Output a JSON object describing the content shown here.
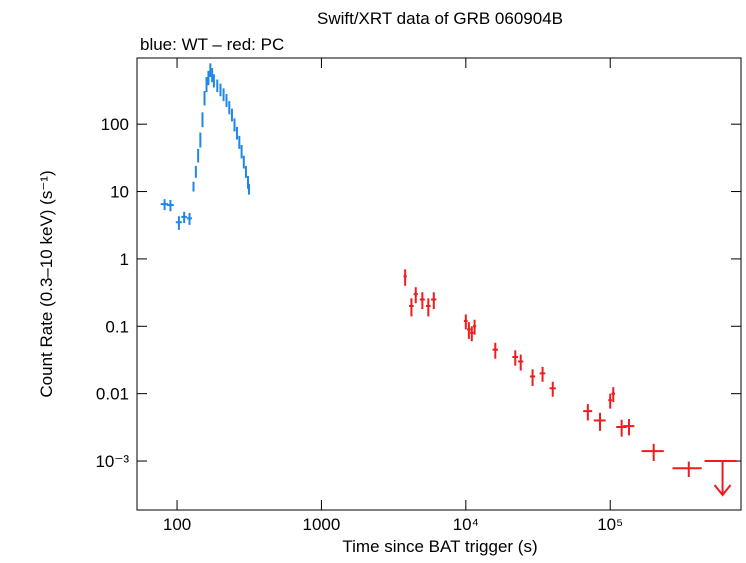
{
  "chart_data": {
    "type": "scatter",
    "title": "Swift/XRT data of GRB 060904B",
    "subtitle": "blue: WT – red: PC",
    "x_label": "Time since BAT trigger (s)",
    "y_label": "Count Rate (0.3–10 keV) (s⁻¹)",
    "x_log": true,
    "y_log": true,
    "xlim": [
      52.8,
      805000
    ],
    "ylim": [
      0.0001875,
      960
    ],
    "xticks": [
      100,
      1000,
      {
        "value": 10000,
        "label": "10⁴"
      },
      {
        "value": 100000,
        "label": "10⁵"
      }
    ],
    "yticks": [
      {
        "value": 0.001,
        "label": "10⁻³"
      },
      0.01,
      0.1,
      1,
      10,
      100
    ],
    "series": [
      {
        "name": "WT",
        "color": "#1f87e8",
        "x": [
          82,
          90,
          103,
          112,
          122,
          130,
          135,
          140,
          145,
          150,
          155,
          160,
          165,
          170,
          175,
          180,
          190,
          200,
          210,
          220,
          230,
          240,
          250,
          260,
          270,
          280,
          290,
          300,
          310,
          315
        ],
        "values": [
          6.5,
          6.3,
          3.5,
          4.2,
          4,
          12,
          20,
          35,
          60,
          120,
          250,
          400,
          500,
          650,
          550,
          450,
          380,
          330,
          280,
          230,
          180,
          140,
          100,
          75,
          55,
          40,
          28,
          20,
          14,
          11
        ],
        "x_errors": [
          5,
          5,
          5,
          5,
          5,
          1,
          1,
          1,
          1,
          1,
          1,
          1,
          1,
          1,
          1,
          1,
          1,
          1,
          1,
          1,
          1,
          1,
          1,
          1,
          1,
          1,
          1,
          1,
          1,
          1
        ],
        "errors": [
          1.2,
          1.2,
          0.8,
          0.8,
          0.8,
          2,
          4,
          8,
          15,
          30,
          60,
          100,
          120,
          150,
          130,
          100,
          80,
          70,
          60,
          50,
          40,
          30,
          22,
          16,
          12,
          9,
          6,
          4,
          3,
          2
        ]
      },
      {
        "name": "PC",
        "color": "#ee1c1c",
        "x": [
          3800,
          4200,
          4500,
          5000,
          5500,
          6000,
          10000,
          10500,
          11000,
          11500,
          16000,
          22000,
          24000,
          29000,
          34000,
          40000,
          70000,
          85000,
          100000,
          105000,
          120000,
          135000,
          200000,
          350000
        ],
        "values": [
          0.55,
          0.2,
          0.3,
          0.25,
          0.2,
          0.25,
          0.12,
          0.09,
          0.08,
          0.1,
          0.045,
          0.035,
          0.03,
          0.018,
          0.02,
          0.012,
          0.0055,
          0.004,
          0.008,
          0.01,
          0.0032,
          0.0033,
          0.0014,
          0.00078
        ],
        "x_errors": [
          100,
          150,
          150,
          200,
          200,
          250,
          300,
          300,
          300,
          300,
          700,
          1000,
          1000,
          1200,
          1500,
          2000,
          5000,
          8000,
          3000,
          3000,
          10000,
          12000,
          35000,
          80000
        ],
        "errors": [
          0.15,
          0.06,
          0.08,
          0.07,
          0.06,
          0.07,
          0.03,
          0.025,
          0.02,
          0.025,
          0.012,
          0.009,
          0.008,
          0.005,
          0.005,
          0.003,
          0.0015,
          0.0012,
          0.002,
          0.0025,
          0.0009,
          0.0009,
          0.0004,
          0.0002
        ],
        "upper_limits": {
          "x": [
            600000
          ],
          "values": [
            0.001
          ],
          "x_errors": [
            150000
          ]
        }
      }
    ]
  }
}
